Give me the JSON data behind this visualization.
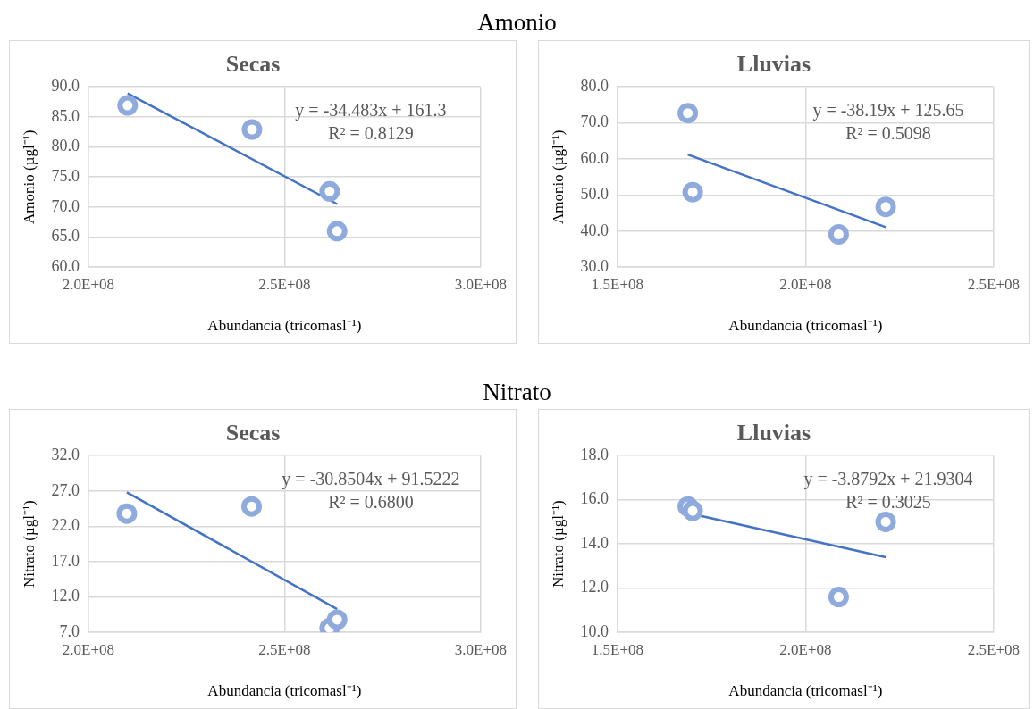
{
  "chart_data": [
    {
      "type": "other",
      "title": "Amonio"
    },
    {
      "type": "scatter",
      "title": "Secas",
      "xlabel": "Abundancia (tricomasl⁻¹)",
      "ylabel": "Amonio (µgl⁻¹)",
      "x": [
        210000000,
        241700000,
        261500000,
        263400000
      ],
      "series": [
        {
          "type": "scatter",
          "color": "#8faadc",
          "values": [
            86.9,
            82.9,
            72.6,
            66.0
          ]
        },
        {
          "type": "line",
          "color": "#4472c4",
          "marker": "none",
          "x": [
            210000000,
            263400000
          ],
          "values": [
            88.9,
            70.5
          ]
        }
      ],
      "xlim": [
        200000000,
        300000000
      ],
      "xticks": [
        {
          "value": 200000000,
          "label": "2.0E+08"
        },
        {
          "value": 250000000,
          "label": "2.5E+08"
        },
        {
          "value": 300000000,
          "label": "3.0E+08"
        }
      ],
      "ylim": [
        60,
        90
      ],
      "yticks": [
        {
          "value": 60,
          "label": "60.0"
        },
        {
          "value": 65,
          "label": "65.0"
        },
        {
          "value": 70,
          "label": "70.0"
        },
        {
          "value": 75,
          "label": "75.0"
        },
        {
          "value": 80,
          "label": "80.0"
        },
        {
          "value": 85,
          "label": "85.0"
        },
        {
          "value": 90,
          "label": "90.0"
        }
      ],
      "grid": true,
      "marker": "circle",
      "annotations": [
        "y = -34.483x + 161.3",
        "R² = 0.8129"
      ]
    },
    {
      "type": "scatter",
      "title": "Lluvias",
      "xlabel": "Abundancia (tricomasl⁻¹)",
      "ylabel": "Amonio (µgl⁻¹)",
      "x": [
        168700000,
        170000000,
        208800000,
        221300000
      ],
      "series": [
        {
          "type": "scatter",
          "color": "#8faadc",
          "values": [
            72.7,
            50.8,
            39.1,
            46.7
          ]
        },
        {
          "type": "line",
          "color": "#4472c4",
          "marker": "none",
          "x": [
            168700000,
            221300000
          ],
          "values": [
            61.2,
            41.1
          ]
        }
      ],
      "xlim": [
        150000000,
        250000000
      ],
      "xticks": [
        {
          "value": 150000000,
          "label": "1.5E+08"
        },
        {
          "value": 200000000,
          "label": "2.0E+08"
        },
        {
          "value": 250000000,
          "label": "2.5E+08"
        }
      ],
      "ylim": [
        30,
        80
      ],
      "yticks": [
        {
          "value": 30,
          "label": "30.0"
        },
        {
          "value": 40,
          "label": "40.0"
        },
        {
          "value": 50,
          "label": "50.0"
        },
        {
          "value": 60,
          "label": "60.0"
        },
        {
          "value": 70,
          "label": "70.0"
        },
        {
          "value": 80,
          "label": "80.0"
        }
      ],
      "grid": true,
      "marker": "circle",
      "annotations": [
        "y = -38.19x + 125.65",
        "R² = 0.5098"
      ]
    },
    {
      "type": "other",
      "title": "Nitrato"
    },
    {
      "type": "scatter",
      "title": "Secas",
      "xlabel": "Abundancia (tricomasl⁻¹)",
      "ylabel": "Nitrato (µgl⁻¹)",
      "x": [
        209800000,
        241600000,
        261500000,
        263400000
      ],
      "series": [
        {
          "type": "scatter",
          "color": "#8faadc",
          "values": [
            23.8,
            24.8,
            7.6,
            8.8
          ]
        },
        {
          "type": "line",
          "color": "#4472c4",
          "marker": "none",
          "x": [
            209800000,
            263400000
          ],
          "values": [
            26.8,
            10.3
          ]
        }
      ],
      "xlim": [
        200000000,
        300000000
      ],
      "xticks": [
        {
          "value": 200000000,
          "label": "2.0E+08"
        },
        {
          "value": 250000000,
          "label": "2.5E+08"
        },
        {
          "value": 300000000,
          "label": "3.0E+08"
        }
      ],
      "ylim": [
        7,
        32
      ],
      "yticks": [
        {
          "value": 7,
          "label": "7.0"
        },
        {
          "value": 12,
          "label": "12.0"
        },
        {
          "value": 17,
          "label": "17.0"
        },
        {
          "value": 22,
          "label": "22.0"
        },
        {
          "value": 27,
          "label": "27.0"
        },
        {
          "value": 32,
          "label": "32.0"
        }
      ],
      "grid": true,
      "marker": "circle",
      "annotations": [
        "y = -30.8504x + 91.5222",
        "R² = 0.6800"
      ]
    },
    {
      "type": "scatter",
      "title": "Lluvias",
      "xlabel": "Abundancia (tricomasl⁻¹)",
      "ylabel": "Nitrato (µgl⁻¹)",
      "x": [
        168700000,
        170000000,
        208800000,
        221300000
      ],
      "series": [
        {
          "type": "scatter",
          "color": "#8faadc",
          "values": [
            15.7,
            15.5,
            11.6,
            15.0
          ]
        },
        {
          "type": "line",
          "color": "#4472c4",
          "marker": "none",
          "x": [
            168700000,
            221300000
          ],
          "values": [
            15.4,
            13.4
          ]
        }
      ],
      "xlim": [
        150000000,
        250000000
      ],
      "xticks": [
        {
          "value": 150000000,
          "label": "1.5E+08"
        },
        {
          "value": 200000000,
          "label": "2.0E+08"
        },
        {
          "value": 250000000,
          "label": "2.5E+08"
        }
      ],
      "ylim": [
        10,
        18
      ],
      "yticks": [
        {
          "value": 10,
          "label": "10.0"
        },
        {
          "value": 12,
          "label": "12.0"
        },
        {
          "value": 14,
          "label": "14.0"
        },
        {
          "value": 16,
          "label": "16.0"
        },
        {
          "value": 18,
          "label": "18.0"
        }
      ],
      "grid": true,
      "marker": "circle",
      "annotations": [
        "y = -3.8792x + 21.9304",
        "R² = 0.3025"
      ]
    }
  ]
}
